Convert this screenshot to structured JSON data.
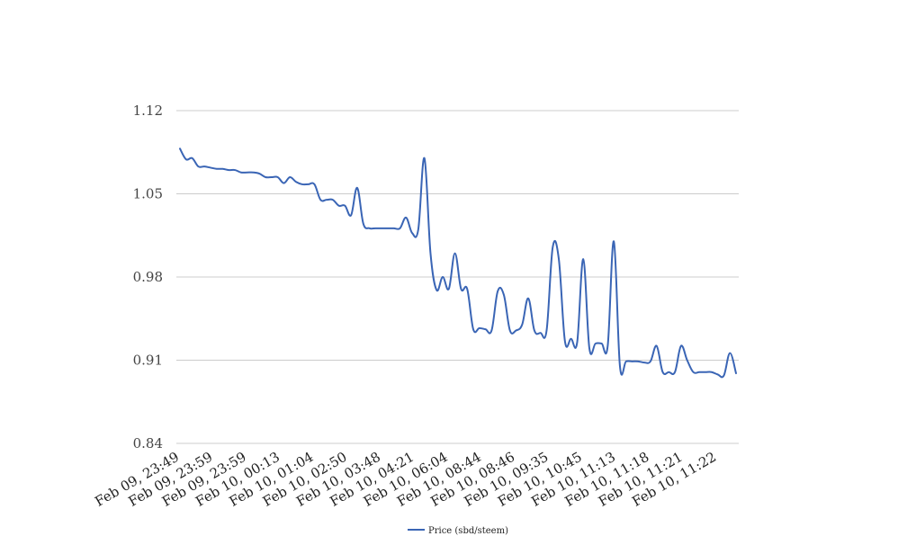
{
  "chart_data": {
    "type": "line",
    "title": "",
    "xlabel": "",
    "ylabel": "",
    "ylim": [
      0.84,
      1.12
    ],
    "y_ticks": [
      "0.84",
      "0.91",
      "0.98",
      "1.05",
      "1.12"
    ],
    "y_tick_values": [
      0.84,
      0.91,
      0.98,
      1.05,
      1.12
    ],
    "x_tick_labels": [
      "Feb 09, 23:49",
      "Feb 09, 23:59",
      "Feb 09, 23:59",
      "Feb 10, 00:13",
      "Feb 10, 01:04",
      "Feb 10, 02:50",
      "Feb 10, 03:48",
      "Feb 10, 04:21",
      "Feb 10, 06:04",
      "Feb 10, 08:44",
      "Feb 10, 08:46",
      "Feb 10, 09:35",
      "Feb 10, 10:45",
      "Feb 10, 11:13",
      "Feb 10, 11:18",
      "Feb 10, 11:21",
      "Feb 10, 11:22"
    ],
    "grid": true,
    "legend_position": "bottom",
    "colors": {
      "series": "#3a65b5",
      "grid": "#cccccc"
    },
    "series": [
      {
        "name": "Price (sbd/steem)",
        "values": [
          1.088,
          1.079,
          1.08,
          1.073,
          1.073,
          1.072,
          1.071,
          1.071,
          1.07,
          1.07,
          1.068,
          1.068,
          1.068,
          1.067,
          1.064,
          1.064,
          1.064,
          1.059,
          1.064,
          1.06,
          1.058,
          1.058,
          1.058,
          1.045,
          1.045,
          1.045,
          1.04,
          1.04,
          1.032,
          1.055,
          1.025,
          1.021,
          1.021,
          1.021,
          1.021,
          1.021,
          1.021,
          1.03,
          1.017,
          1.02,
          1.08,
          1.0,
          0.969,
          0.98,
          0.97,
          1.0,
          0.97,
          0.97,
          0.936,
          0.937,
          0.936,
          0.935,
          0.968,
          0.965,
          0.935,
          0.935,
          0.94,
          0.962,
          0.935,
          0.933,
          0.935,
          1.005,
          0.995,
          0.926,
          0.928,
          0.925,
          0.995,
          0.92,
          0.924,
          0.924,
          0.922,
          1.01,
          0.905,
          0.909,
          0.909,
          0.909,
          0.908,
          0.909,
          0.922,
          0.9,
          0.9,
          0.9,
          0.922,
          0.91,
          0.9,
          0.9,
          0.9,
          0.9,
          0.898,
          0.897,
          0.916,
          0.899
        ]
      }
    ]
  }
}
